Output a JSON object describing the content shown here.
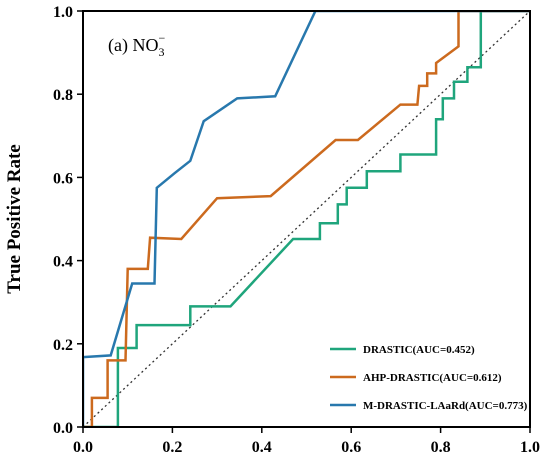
{
  "chart_data": {
    "type": "line",
    "title": "",
    "panel_label": {
      "prefix": "(a) NO",
      "subscript": "3",
      "superscript": "−"
    },
    "xlabel": "",
    "ylabel": "True Positive Rate",
    "xlim": [
      0,
      1
    ],
    "ylim": [
      0,
      1
    ],
    "xticks": [
      "0.0",
      "0.2",
      "0.4",
      "0.6",
      "0.8",
      "1.0"
    ],
    "yticks": [
      "0.0",
      "0.2",
      "0.4",
      "0.6",
      "0.8",
      "1.0"
    ],
    "grid": false,
    "legend_position": "bottom-right",
    "reference_line": {
      "style": "dotted",
      "color": "#333333",
      "points": [
        [
          0,
          0
        ],
        [
          1,
          1
        ]
      ]
    },
    "series": [
      {
        "name": "DRASTIC(AUC=0.452)",
        "color": "#1fa57c",
        "points": [
          [
            0.0,
            0.0
          ],
          [
            0.078,
            0.0
          ],
          [
            0.078,
            0.19
          ],
          [
            0.12,
            0.19
          ],
          [
            0.12,
            0.245
          ],
          [
            0.24,
            0.245
          ],
          [
            0.24,
            0.29
          ],
          [
            0.33,
            0.29
          ],
          [
            0.47,
            0.452
          ],
          [
            0.53,
            0.452
          ],
          [
            0.53,
            0.49
          ],
          [
            0.57,
            0.49
          ],
          [
            0.57,
            0.535
          ],
          [
            0.59,
            0.535
          ],
          [
            0.59,
            0.575
          ],
          [
            0.635,
            0.575
          ],
          [
            0.635,
            0.615
          ],
          [
            0.71,
            0.615
          ],
          [
            0.71,
            0.655
          ],
          [
            0.79,
            0.655
          ],
          [
            0.79,
            0.74
          ],
          [
            0.805,
            0.74
          ],
          [
            0.805,
            0.79
          ],
          [
            0.83,
            0.79
          ],
          [
            0.83,
            0.83
          ],
          [
            0.86,
            0.83
          ],
          [
            0.86,
            0.865
          ],
          [
            0.885,
            0.865
          ],
          [
            0.89,
            0.865
          ],
          [
            0.89,
            1.0
          ],
          [
            1.0,
            1.0
          ]
        ]
      },
      {
        "name": "AHP-DRASTIC(AUC=0.612)",
        "color": "#cc6a1e",
        "points": [
          [
            0.0,
            0.0
          ],
          [
            0.02,
            0.0
          ],
          [
            0.02,
            0.07
          ],
          [
            0.055,
            0.07
          ],
          [
            0.055,
            0.16
          ],
          [
            0.095,
            0.16
          ],
          [
            0.1,
            0.38
          ],
          [
            0.145,
            0.38
          ],
          [
            0.15,
            0.455
          ],
          [
            0.22,
            0.452
          ],
          [
            0.3,
            0.55
          ],
          [
            0.42,
            0.555
          ],
          [
            0.565,
            0.69
          ],
          [
            0.615,
            0.69
          ],
          [
            0.71,
            0.775
          ],
          [
            0.748,
            0.775
          ],
          [
            0.752,
            0.82
          ],
          [
            0.77,
            0.82
          ],
          [
            0.77,
            0.85
          ],
          [
            0.79,
            0.85
          ],
          [
            0.79,
            0.875
          ],
          [
            0.84,
            0.915
          ],
          [
            0.84,
            1.0
          ],
          [
            1.0,
            1.0
          ]
        ]
      },
      {
        "name": "M-DRASTIC-LAaRd(AUC=0.773)",
        "color": "#2878ad",
        "points": [
          [
            0.0,
            0.0
          ],
          [
            0.0,
            0.168
          ],
          [
            0.062,
            0.172
          ],
          [
            0.11,
            0.345
          ],
          [
            0.16,
            0.345
          ],
          [
            0.165,
            0.575
          ],
          [
            0.205,
            0.61
          ],
          [
            0.24,
            0.64
          ],
          [
            0.27,
            0.735
          ],
          [
            0.345,
            0.79
          ],
          [
            0.43,
            0.795
          ],
          [
            0.52,
            1.0
          ],
          [
            1.0,
            1.0
          ]
        ]
      }
    ]
  }
}
